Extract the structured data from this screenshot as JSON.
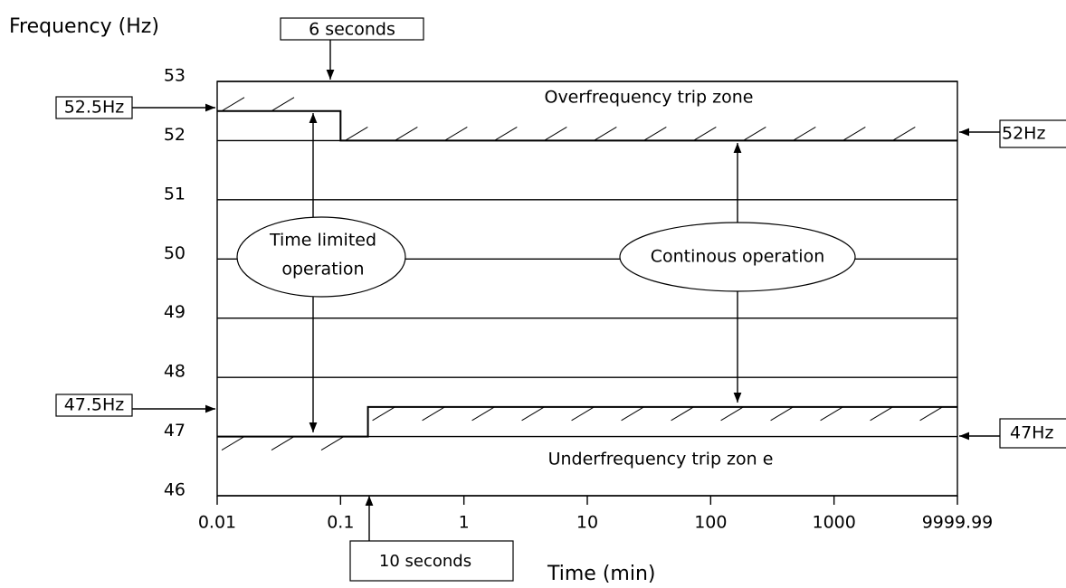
{
  "chart_data": {
    "type": "line",
    "y_label": "Frequency (Hz)",
    "x_label": "Time (min)",
    "log_x": true,
    "grid": true,
    "xlim": [
      0.01,
      9999.99
    ],
    "xticks": [
      0.01,
      0.1,
      1,
      10,
      100,
      1000,
      9999.99
    ],
    "ylim": [
      46,
      53
    ],
    "yticks": [
      46,
      47,
      48,
      49,
      50,
      51,
      52,
      53
    ],
    "series": [
      {
        "color": "#000000",
        "x": [
          0.01,
          0.1,
          0.1,
          9999.99
        ],
        "values": [
          52.5,
          52.5,
          52,
          52
        ]
      },
      {
        "color": "#000000",
        "x": [
          0.01,
          0.1667,
          0.1667,
          9999.99
        ],
        "values": [
          47,
          47,
          47.5,
          47.5
        ]
      }
    ],
    "annotations": {
      "six_seconds": "6 seconds",
      "ten_seconds": "10 seconds",
      "f525": "52.5Hz",
      "f52": "52Hz",
      "f475": "47.5Hz",
      "f47": "47Hz",
      "over_zone": "Overfrequency trip zone",
      "under_zone": "Underfrequency trip zon e",
      "time_limited_1": "Time limited",
      "time_limited_2": "operation",
      "continuous": "Continous operation"
    }
  }
}
